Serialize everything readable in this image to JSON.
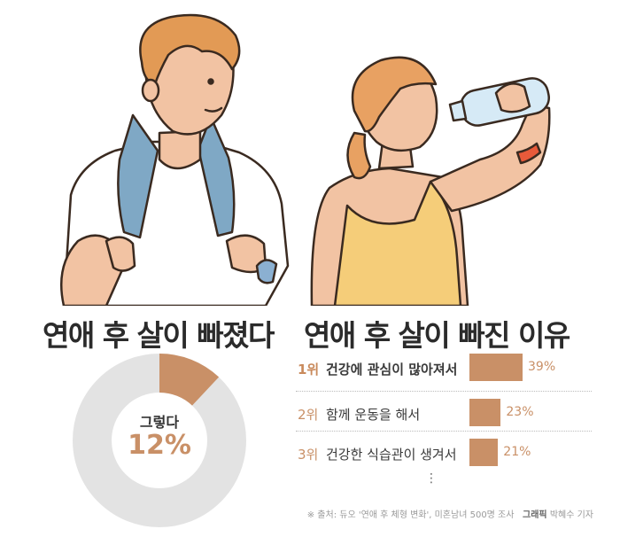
{
  "left_title": "연애 후 살이 빠졌다",
  "right_title": "연애 후 살이 빠진 이유",
  "colors": {
    "accent": "#c99067",
    "ring": "#e3e3e3",
    "text": "#2b2b2b"
  },
  "donut": {
    "label": "그렇다",
    "value_text": "12%"
  },
  "reasons": [
    {
      "rank": "1위",
      "reason": "건강에 관심이 많아져서",
      "value_text": "39%"
    },
    {
      "rank": "2위",
      "reason": "함께 운동을 해서",
      "value_text": "23%"
    },
    {
      "rank": "3위",
      "reason": "건강한 식습관이 생겨서",
      "value_text": "21%"
    }
  ],
  "ellipsis": "⋮",
  "source": {
    "note": "※ 출처: 듀오 '연애 후 체형 변화', 미혼남녀 500명 조사",
    "credit_label": "그래픽",
    "credit_name": "박혜수 기자"
  },
  "chart_data": [
    {
      "type": "pie",
      "title": "연애 후 살이 빠졌다",
      "categories": [
        "그렇다",
        ""
      ],
      "values": [
        12,
        88
      ]
    },
    {
      "type": "bar",
      "title": "연애 후 살이 빠진 이유",
      "categories": [
        "건강에 관심이 많아져서",
        "함께 운동을 해서",
        "건강한 식습관이 생겨서"
      ],
      "values": [
        39,
        23,
        21
      ]
    }
  ]
}
